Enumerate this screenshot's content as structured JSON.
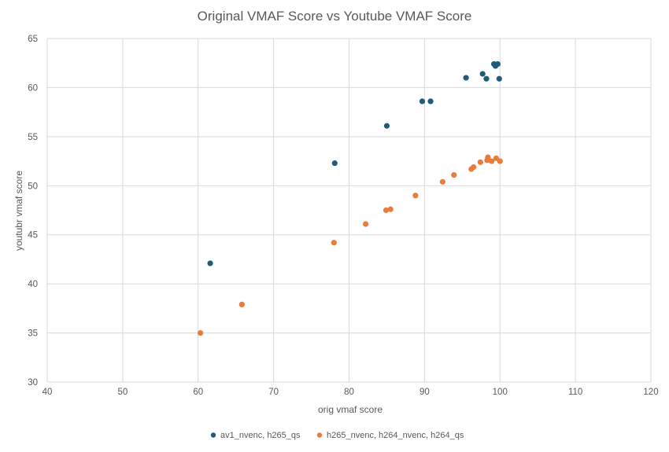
{
  "chart_data": {
    "type": "scatter",
    "title": "Original VMAF Score vs Youtube VMAF Score",
    "xlabel": "orig vmaf score",
    "ylabel": "youtubr vmaf score",
    "xlim": [
      40,
      120
    ],
    "ylim": [
      30,
      65
    ],
    "xticks": [
      40,
      50,
      60,
      70,
      80,
      90,
      100,
      110,
      120
    ],
    "yticks": [
      30,
      35,
      40,
      45,
      50,
      55,
      60,
      65
    ],
    "grid": true,
    "legend_position": "bottom",
    "series": [
      {
        "name": "av1_nvenc, h265_qs",
        "color": "#1f5c7a",
        "points": [
          [
            61.6,
            42.1
          ],
          [
            78.1,
            52.3
          ],
          [
            85.0,
            56.1
          ],
          [
            89.7,
            58.6
          ],
          [
            90.8,
            58.6
          ],
          [
            95.5,
            61.0
          ],
          [
            97.7,
            61.4
          ],
          [
            98.2,
            60.9
          ],
          [
            99.2,
            62.4
          ],
          [
            99.4,
            62.2
          ],
          [
            99.7,
            62.4
          ],
          [
            99.9,
            60.9
          ]
        ]
      },
      {
        "name": "h265_nvenc, h264_nvenc, h264_qs",
        "color": "#e97c3a",
        "points": [
          [
            60.3,
            35.0
          ],
          [
            65.8,
            37.9
          ],
          [
            78.0,
            44.2
          ],
          [
            82.2,
            46.1
          ],
          [
            84.9,
            47.5
          ],
          [
            85.5,
            47.6
          ],
          [
            88.8,
            49.0
          ],
          [
            92.4,
            50.4
          ],
          [
            93.9,
            51.1
          ],
          [
            96.2,
            51.7
          ],
          [
            96.5,
            51.9
          ],
          [
            97.4,
            52.4
          ],
          [
            98.3,
            52.6
          ],
          [
            98.4,
            52.9
          ],
          [
            98.9,
            52.5
          ],
          [
            99.5,
            52.8
          ],
          [
            100.0,
            52.5
          ]
        ]
      }
    ]
  }
}
